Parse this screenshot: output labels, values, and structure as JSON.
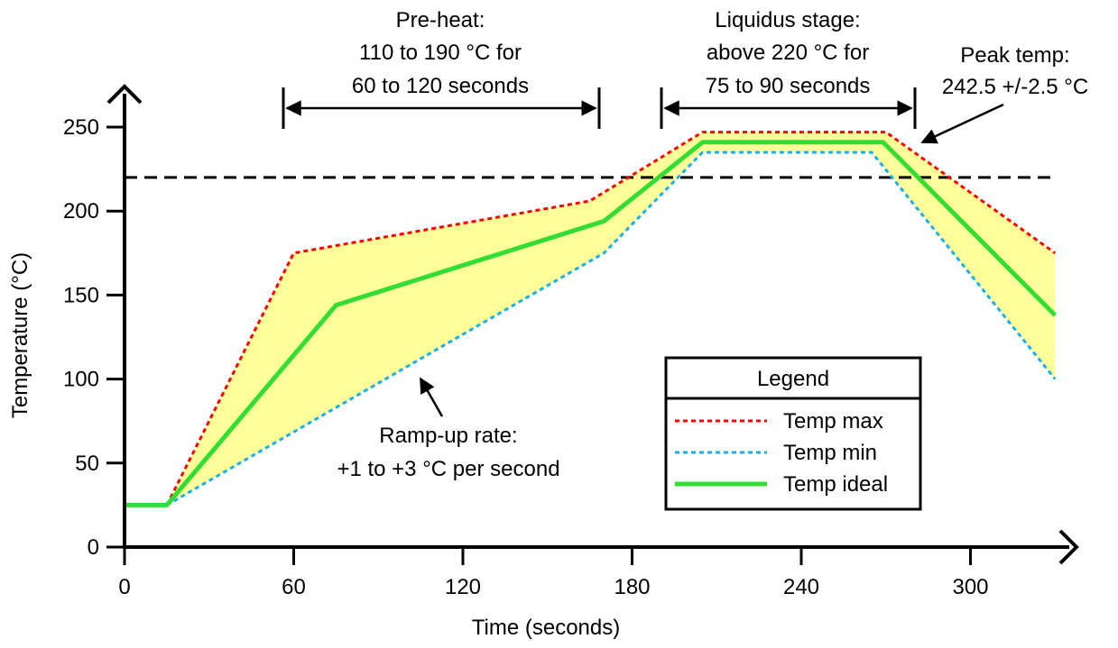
{
  "chart_data": {
    "type": "line",
    "title": "",
    "xlabel": "Time (seconds)",
    "ylabel": "Temperature (°C)",
    "xlim": [
      0,
      335
    ],
    "ylim": [
      0,
      260
    ],
    "x_ticks": [
      0,
      60,
      120,
      180,
      240,
      300
    ],
    "y_ticks": [
      0,
      50,
      100,
      150,
      200,
      250
    ],
    "grid": false,
    "series": [
      {
        "name": "Temp max",
        "color": "#ff0000",
        "style": "dotted",
        "points": [
          [
            15,
            25
          ],
          [
            60,
            175
          ],
          [
            165,
            206
          ],
          [
            205,
            247
          ],
          [
            270,
            247
          ],
          [
            330,
            175
          ]
        ]
      },
      {
        "name": "Temp min",
        "color": "#1ab0f0",
        "style": "dotted",
        "points": [
          [
            15,
            25
          ],
          [
            170,
            175
          ],
          [
            205,
            235
          ],
          [
            265,
            235
          ],
          [
            330,
            100
          ]
        ]
      },
      {
        "name": "Temp ideal",
        "color": "#33dd33",
        "style": "solid",
        "points": [
          [
            0,
            25
          ],
          [
            15,
            25
          ],
          [
            75,
            144
          ],
          [
            170,
            194
          ],
          [
            205,
            241
          ],
          [
            269,
            241
          ],
          [
            330,
            138
          ]
        ]
      }
    ],
    "reference_line": {
      "y": 220,
      "style": "dashed",
      "color": "#000000"
    },
    "shaded_region": {
      "between": [
        "Temp max",
        "Temp min"
      ],
      "color": "#ffff99"
    },
    "legend": {
      "title": "Legend",
      "position": "bottom-right",
      "entries": [
        "Temp max",
        "Temp min",
        "Temp ideal"
      ]
    },
    "annotations": [
      {
        "id": "preheat",
        "lines": [
          "Pre-heat:",
          "110 to 190 °C for",
          "60 to 120 seconds"
        ],
        "x_range": [
          56,
          168
        ]
      },
      {
        "id": "liquidus",
        "lines": [
          "Liquidus stage:",
          "above 220 °C for",
          "75 to 90 seconds"
        ],
        "x_range": [
          190,
          278
        ]
      },
      {
        "id": "peak",
        "lines": [
          "Peak temp:",
          "242.5 +/-2.5 °C"
        ]
      },
      {
        "id": "rampup",
        "lines": [
          "Ramp-up rate:",
          "+1 to +3 °C per second"
        ]
      }
    ]
  }
}
